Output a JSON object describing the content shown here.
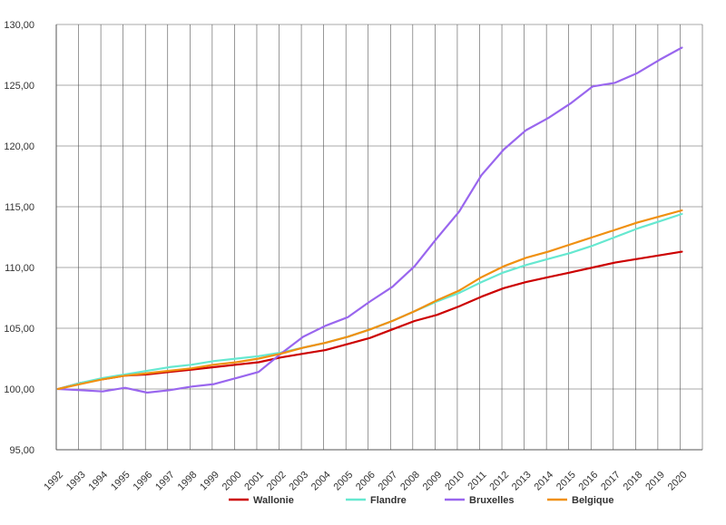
{
  "chart_data": {
    "type": "line",
    "title": "",
    "xlabel": "",
    "ylabel": "",
    "ylim": [
      95,
      130
    ],
    "y_ticks": [
      "95,00",
      "100,00",
      "105,00",
      "110,00",
      "115,00",
      "120,00",
      "125,00",
      "130,00"
    ],
    "x": [
      "1992",
      "1993",
      "1994",
      "1995",
      "1996",
      "1997",
      "1998",
      "1999",
      "2000",
      "2001",
      "2002",
      "2003",
      "2004",
      "2005",
      "2006",
      "2007",
      "2008",
      "2009",
      "2010",
      "2011",
      "2012",
      "2013",
      "2014",
      "2015",
      "2016",
      "2017",
      "2018",
      "2019",
      "2020"
    ],
    "grid": "vertical and horizontal",
    "legend_position": "bottom",
    "series": [
      {
        "name": "Wallonie",
        "color": "#cc0000",
        "values": [
          100.0,
          100.5,
          100.8,
          101.1,
          101.2,
          101.4,
          101.6,
          101.8,
          102.0,
          102.2,
          102.6,
          102.9,
          103.2,
          103.7,
          104.2,
          104.9,
          105.6,
          106.1,
          106.8,
          107.6,
          108.3,
          108.8,
          109.2,
          109.6,
          110.0,
          110.4,
          110.7,
          111.0,
          111.3
        ]
      },
      {
        "name": "Flandre",
        "color": "#66e8d0",
        "values": [
          100.0,
          100.5,
          100.9,
          101.2,
          101.5,
          101.8,
          102.0,
          102.3,
          102.5,
          102.7,
          103.0,
          103.4,
          103.8,
          104.3,
          104.9,
          105.6,
          106.4,
          107.2,
          107.9,
          108.8,
          109.6,
          110.2,
          110.7,
          111.2,
          111.8,
          112.5,
          113.2,
          113.8,
          114.4
        ]
      },
      {
        "name": "Bruxelles",
        "color": "#9966ee",
        "values": [
          100.0,
          99.9,
          99.8,
          100.1,
          99.7,
          99.9,
          100.2,
          100.4,
          100.9,
          101.4,
          102.9,
          104.3,
          105.2,
          105.9,
          107.2,
          108.4,
          110.1,
          112.4,
          114.6,
          117.6,
          119.7,
          121.3,
          122.3,
          123.5,
          124.9,
          125.2,
          126.0,
          127.1,
          128.1
        ]
      },
      {
        "name": "Belgique",
        "color": "#f09010",
        "values": [
          100.0,
          100.4,
          100.8,
          101.1,
          101.3,
          101.5,
          101.7,
          102.0,
          102.2,
          102.5,
          102.9,
          103.4,
          103.8,
          104.3,
          104.9,
          105.6,
          106.4,
          107.3,
          108.1,
          109.2,
          110.1,
          110.8,
          111.3,
          111.9,
          112.5,
          113.1,
          113.7,
          114.2,
          114.7
        ]
      }
    ]
  }
}
